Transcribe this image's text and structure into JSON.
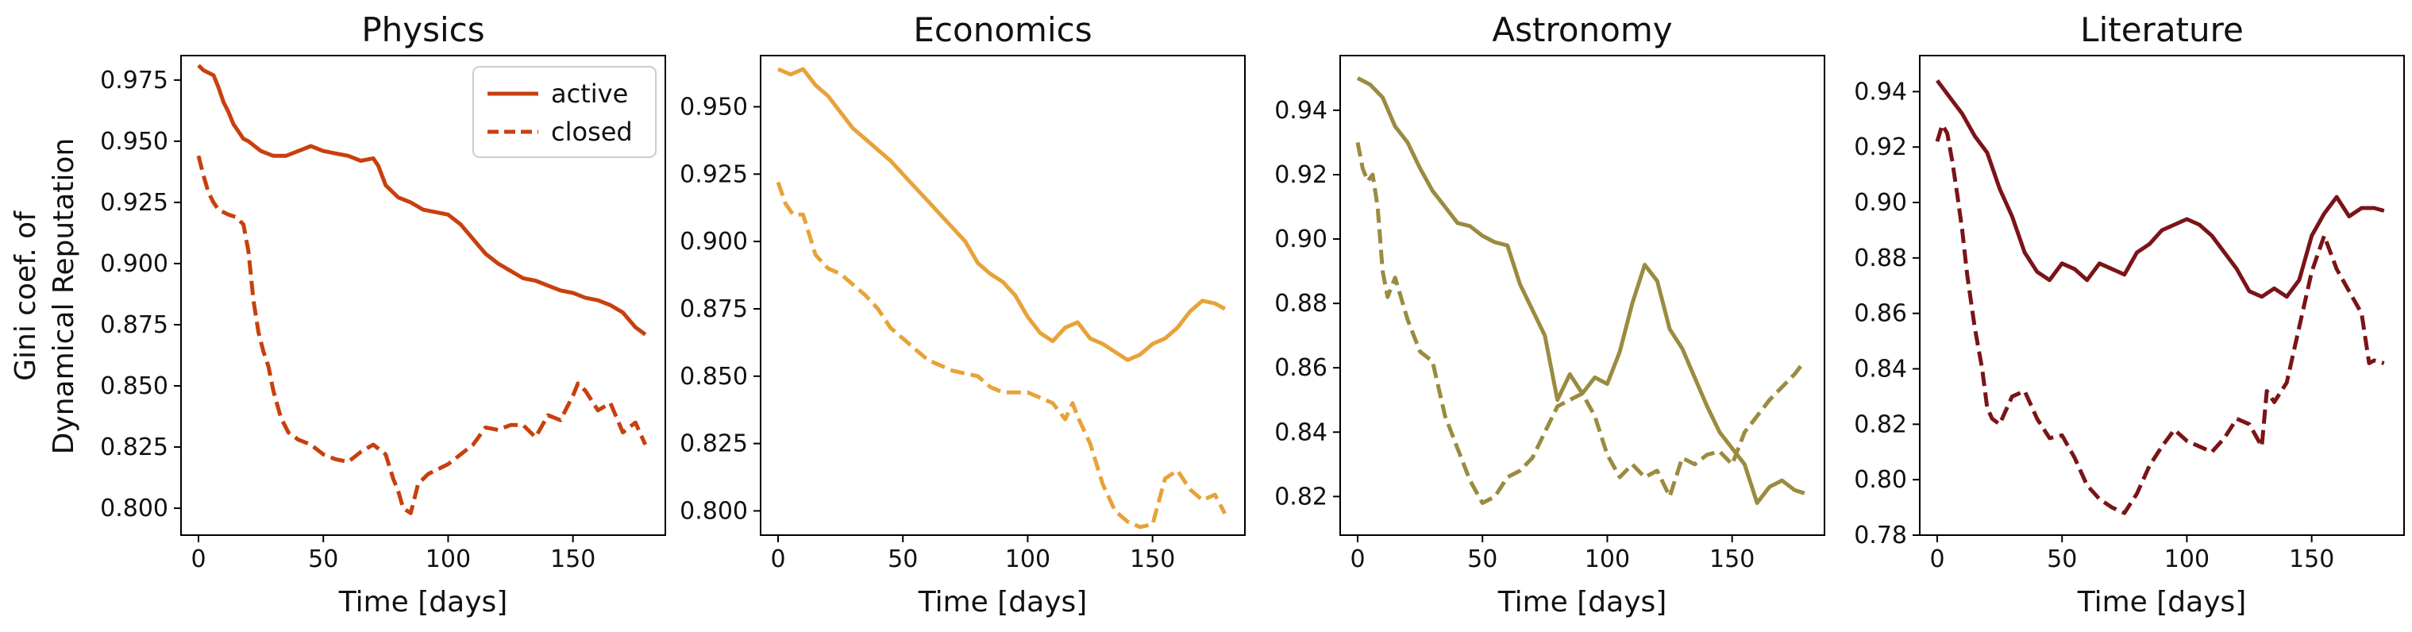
{
  "figure": {
    "ylabel_line1": "Gini coef. of",
    "ylabel_line2": "Dynamical Reputation",
    "legend": {
      "active": "active",
      "closed": "closed"
    }
  },
  "chart_data": [
    {
      "type": "line",
      "title": "Physics",
      "xlabel": "Time [days]",
      "xlim": [
        -7,
        187
      ],
      "ylim": [
        0.789,
        0.985
      ],
      "xticks": [
        0,
        50,
        100,
        150
      ],
      "yticks": [
        0.8,
        0.825,
        0.85,
        0.875,
        0.9,
        0.925,
        0.95,
        0.975
      ],
      "ytick_labels": [
        "0.800",
        "0.825",
        "0.850",
        "0.875",
        "0.900",
        "0.925",
        "0.950",
        "0.975"
      ],
      "color": "#c8400e",
      "legend_location": "top-right",
      "series": [
        {
          "name": "active",
          "style": "solid",
          "x": [
            0,
            2,
            4,
            6,
            8,
            10,
            12,
            14,
            16,
            18,
            20,
            25,
            30,
            35,
            40,
            45,
            50,
            55,
            60,
            65,
            70,
            72,
            75,
            78,
            80,
            85,
            90,
            95,
            100,
            105,
            110,
            115,
            120,
            125,
            130,
            135,
            140,
            145,
            150,
            155,
            160,
            165,
            170,
            175,
            179
          ],
          "y": [
            0.981,
            0.979,
            0.978,
            0.977,
            0.972,
            0.966,
            0.962,
            0.957,
            0.954,
            0.951,
            0.95,
            0.946,
            0.944,
            0.944,
            0.946,
            0.948,
            0.946,
            0.945,
            0.944,
            0.942,
            0.943,
            0.94,
            0.932,
            0.929,
            0.927,
            0.925,
            0.922,
            0.921,
            0.92,
            0.916,
            0.91,
            0.904,
            0.9,
            0.897,
            0.894,
            0.893,
            0.891,
            0.889,
            0.888,
            0.886,
            0.885,
            0.883,
            0.88,
            0.874,
            0.871
          ]
        },
        {
          "name": "closed",
          "style": "dashed",
          "x": [
            0,
            2,
            4,
            6,
            8,
            10,
            12,
            15,
            18,
            20,
            22,
            24,
            26,
            28,
            30,
            33,
            36,
            40,
            45,
            50,
            55,
            60,
            65,
            70,
            75,
            78,
            80,
            82,
            85,
            88,
            92,
            96,
            100,
            105,
            110,
            115,
            120,
            125,
            130,
            135,
            140,
            145,
            150,
            152,
            155,
            160,
            165,
            170,
            175,
            179
          ],
          "y": [
            0.944,
            0.936,
            0.929,
            0.925,
            0.922,
            0.921,
            0.92,
            0.919,
            0.916,
            0.905,
            0.885,
            0.872,
            0.864,
            0.858,
            0.848,
            0.837,
            0.831,
            0.828,
            0.826,
            0.822,
            0.82,
            0.819,
            0.823,
            0.826,
            0.822,
            0.812,
            0.807,
            0.8,
            0.798,
            0.81,
            0.814,
            0.816,
            0.818,
            0.822,
            0.826,
            0.833,
            0.832,
            0.834,
            0.834,
            0.829,
            0.838,
            0.836,
            0.846,
            0.851,
            0.848,
            0.84,
            0.843,
            0.831,
            0.835,
            0.826
          ]
        }
      ]
    },
    {
      "type": "line",
      "title": "Economics",
      "xlabel": "Time [days]",
      "xlim": [
        -7,
        187
      ],
      "ylim": [
        0.791,
        0.969
      ],
      "xticks": [
        0,
        50,
        100,
        150
      ],
      "yticks": [
        0.8,
        0.825,
        0.85,
        0.875,
        0.9,
        0.925,
        0.95
      ],
      "ytick_labels": [
        "0.800",
        "0.825",
        "0.850",
        "0.875",
        "0.900",
        "0.925",
        "0.950"
      ],
      "color": "#e8a23a",
      "series": [
        {
          "name": "active",
          "style": "solid",
          "x": [
            0,
            5,
            10,
            15,
            20,
            25,
            30,
            35,
            40,
            45,
            50,
            55,
            60,
            65,
            70,
            75,
            80,
            85,
            90,
            95,
            100,
            105,
            110,
            115,
            120,
            125,
            130,
            135,
            140,
            145,
            150,
            155,
            160,
            165,
            170,
            175,
            179
          ],
          "y": [
            0.964,
            0.962,
            0.964,
            0.958,
            0.954,
            0.948,
            0.942,
            0.938,
            0.934,
            0.93,
            0.925,
            0.92,
            0.915,
            0.91,
            0.905,
            0.9,
            0.892,
            0.888,
            0.885,
            0.88,
            0.872,
            0.866,
            0.863,
            0.868,
            0.87,
            0.864,
            0.862,
            0.859,
            0.856,
            0.858,
            0.862,
            0.864,
            0.868,
            0.874,
            0.878,
            0.877,
            0.875
          ]
        },
        {
          "name": "closed",
          "style": "dashed",
          "x": [
            0,
            3,
            6,
            10,
            15,
            20,
            25,
            30,
            35,
            40,
            45,
            50,
            55,
            60,
            65,
            70,
            75,
            80,
            85,
            90,
            95,
            100,
            105,
            110,
            115,
            118,
            120,
            125,
            130,
            135,
            140,
            145,
            150,
            155,
            160,
            165,
            170,
            175,
            179
          ],
          "y": [
            0.922,
            0.914,
            0.91,
            0.91,
            0.895,
            0.89,
            0.888,
            0.884,
            0.88,
            0.875,
            0.868,
            0.864,
            0.86,
            0.856,
            0.854,
            0.852,
            0.851,
            0.85,
            0.846,
            0.844,
            0.844,
            0.844,
            0.842,
            0.84,
            0.834,
            0.84,
            0.835,
            0.825,
            0.81,
            0.8,
            0.796,
            0.794,
            0.795,
            0.812,
            0.815,
            0.808,
            0.804,
            0.806,
            0.799
          ]
        }
      ]
    },
    {
      "type": "line",
      "title": "Astronomy",
      "xlabel": "Time [days]",
      "xlim": [
        -7,
        187
      ],
      "ylim": [
        0.808,
        0.957
      ],
      "xticks": [
        0,
        50,
        100,
        150
      ],
      "yticks": [
        0.82,
        0.84,
        0.86,
        0.88,
        0.9,
        0.92,
        0.94
      ],
      "ytick_labels": [
        "0.82",
        "0.84",
        "0.86",
        "0.88",
        "0.90",
        "0.92",
        "0.94"
      ],
      "color": "#9a8b40",
      "series": [
        {
          "name": "active",
          "style": "solid",
          "x": [
            0,
            5,
            10,
            15,
            20,
            25,
            30,
            35,
            40,
            45,
            50,
            55,
            60,
            65,
            70,
            75,
            78,
            80,
            85,
            90,
            95,
            100,
            105,
            110,
            115,
            120,
            125,
            130,
            135,
            140,
            145,
            150,
            155,
            160,
            165,
            170,
            175,
            179
          ],
          "y": [
            0.95,
            0.948,
            0.944,
            0.935,
            0.93,
            0.922,
            0.915,
            0.91,
            0.905,
            0.904,
            0.901,
            0.899,
            0.898,
            0.886,
            0.878,
            0.87,
            0.858,
            0.85,
            0.858,
            0.852,
            0.857,
            0.855,
            0.865,
            0.88,
            0.892,
            0.887,
            0.872,
            0.866,
            0.857,
            0.848,
            0.84,
            0.835,
            0.83,
            0.818,
            0.823,
            0.825,
            0.822,
            0.821
          ]
        },
        {
          "name": "closed",
          "style": "dashed",
          "x": [
            0,
            2,
            4,
            6,
            8,
            10,
            12,
            15,
            20,
            25,
            30,
            35,
            40,
            45,
            50,
            55,
            60,
            65,
            70,
            75,
            80,
            85,
            90,
            95,
            100,
            105,
            110,
            115,
            120,
            125,
            130,
            135,
            140,
            145,
            150,
            155,
            160,
            165,
            170,
            175,
            179
          ],
          "y": [
            0.93,
            0.922,
            0.918,
            0.92,
            0.91,
            0.89,
            0.882,
            0.888,
            0.875,
            0.865,
            0.862,
            0.845,
            0.835,
            0.825,
            0.818,
            0.82,
            0.826,
            0.828,
            0.832,
            0.84,
            0.848,
            0.85,
            0.852,
            0.845,
            0.833,
            0.826,
            0.83,
            0.826,
            0.828,
            0.82,
            0.832,
            0.83,
            0.833,
            0.834,
            0.83,
            0.84,
            0.845,
            0.85,
            0.854,
            0.858,
            0.862
          ]
        }
      ]
    },
    {
      "type": "line",
      "title": "Literature",
      "xlabel": "Time [days]",
      "xlim": [
        -7,
        187
      ],
      "ylim": [
        0.78,
        0.953
      ],
      "xticks": [
        0,
        50,
        100,
        150
      ],
      "yticks": [
        0.78,
        0.8,
        0.82,
        0.84,
        0.86,
        0.88,
        0.9,
        0.92,
        0.94
      ],
      "ytick_labels": [
        "0.78",
        "0.80",
        "0.82",
        "0.84",
        "0.86",
        "0.88",
        "0.90",
        "0.92",
        "0.94"
      ],
      "color": "#7a1418",
      "series": [
        {
          "name": "active",
          "style": "solid",
          "x": [
            0,
            5,
            10,
            15,
            20,
            25,
            30,
            35,
            40,
            45,
            50,
            55,
            60,
            65,
            70,
            75,
            80,
            85,
            90,
            95,
            100,
            105,
            110,
            115,
            120,
            125,
            130,
            135,
            140,
            145,
            150,
            155,
            160,
            165,
            170,
            175,
            179
          ],
          "y": [
            0.944,
            0.938,
            0.932,
            0.924,
            0.918,
            0.905,
            0.895,
            0.882,
            0.875,
            0.872,
            0.878,
            0.876,
            0.872,
            0.878,
            0.876,
            0.874,
            0.882,
            0.885,
            0.89,
            0.892,
            0.894,
            0.892,
            0.888,
            0.882,
            0.876,
            0.868,
            0.866,
            0.869,
            0.866,
            0.872,
            0.888,
            0.896,
            0.902,
            0.895,
            0.898,
            0.898,
            0.897
          ]
        },
        {
          "name": "closed",
          "style": "dashed",
          "x": [
            0,
            2,
            4,
            6,
            8,
            10,
            12,
            15,
            18,
            20,
            22,
            25,
            30,
            35,
            40,
            45,
            50,
            55,
            60,
            65,
            70,
            75,
            80,
            85,
            90,
            95,
            100,
            105,
            110,
            115,
            120,
            125,
            130,
            132,
            135,
            140,
            145,
            150,
            155,
            160,
            165,
            170,
            173,
            175,
            179
          ],
          "y": [
            0.922,
            0.928,
            0.925,
            0.915,
            0.903,
            0.89,
            0.874,
            0.855,
            0.84,
            0.826,
            0.822,
            0.82,
            0.83,
            0.832,
            0.822,
            0.815,
            0.816,
            0.808,
            0.798,
            0.793,
            0.79,
            0.788,
            0.795,
            0.805,
            0.812,
            0.818,
            0.814,
            0.812,
            0.81,
            0.815,
            0.822,
            0.82,
            0.812,
            0.832,
            0.828,
            0.835,
            0.855,
            0.875,
            0.888,
            0.876,
            0.868,
            0.86,
            0.842,
            0.843,
            0.842
          ]
        }
      ]
    }
  ]
}
